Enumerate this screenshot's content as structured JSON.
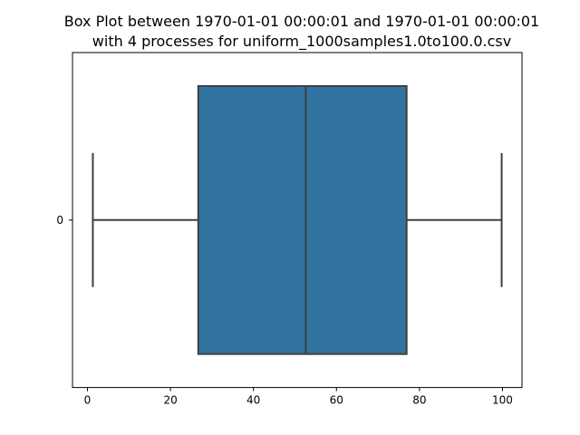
{
  "chart_data": {
    "type": "box",
    "title": [
      "Box Plot between  1970-01-01 00:00:01 and 1970-01-01 00:00:01",
      "with 4 processes for uniform_1000samples1.0to100.0.csv"
    ],
    "orientation": "horizontal",
    "categories": [
      "0"
    ],
    "boxes": [
      {
        "category": "0",
        "whisker_low": 1.3,
        "q1": 26.7,
        "median": 52.6,
        "q3": 76.9,
        "whisker_high": 99.8
      }
    ],
    "xlim": [
      -3.6,
      104.7
    ],
    "xticks": [
      0,
      20,
      40,
      60,
      80,
      100
    ],
    "xlabel": "",
    "ylabel": "",
    "grid": false,
    "colors": {
      "box_fill": "#3274a1",
      "line": "#3f3f3f",
      "axes": "#000000"
    }
  }
}
